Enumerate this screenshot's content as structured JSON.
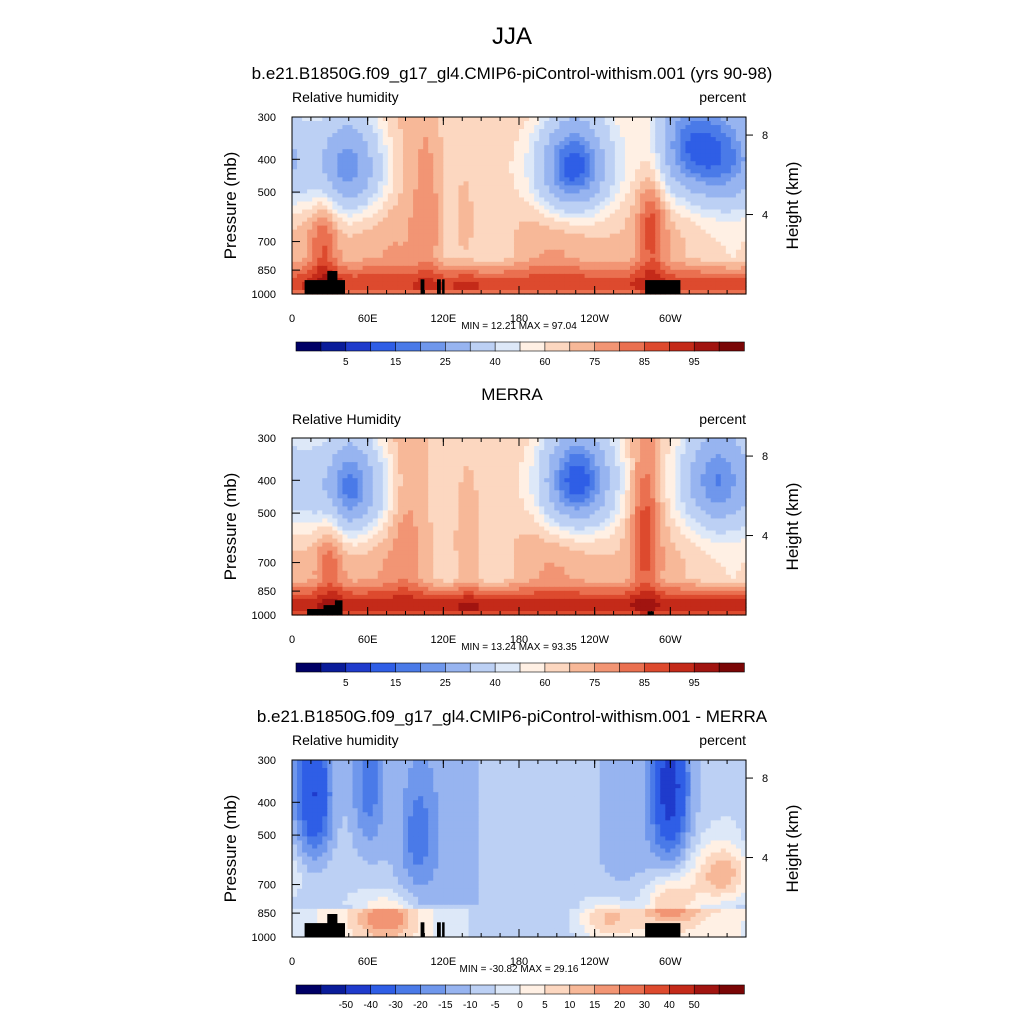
{
  "figure_title": "JJA",
  "colors": {
    "abs_levels": [
      "#000066",
      "#0a1c9a",
      "#1f3bcc",
      "#2f5ee6",
      "#4a7ae8",
      "#6f97ec",
      "#97b4f0",
      "#bcd0f4",
      "#dde8f8",
      "#fff0e4",
      "#fcd7c0",
      "#f7b898",
      "#f29574",
      "#ea7050",
      "#dd4a2e",
      "#c42a19",
      "#a11410",
      "#7a0606"
    ],
    "diff_levels": [
      "#000066",
      "#0a1c9a",
      "#1f3bcc",
      "#2f5ee6",
      "#4a7ae8",
      "#6f97ec",
      "#97b4f0",
      "#bcd0f4",
      "#dde8f8",
      "#fff0e4",
      "#fcd7c0",
      "#f7b898",
      "#f29574",
      "#ea7050",
      "#dd4a2e",
      "#c42a19",
      "#a11410",
      "#7a0606"
    ],
    "topography": "#000000"
  },
  "chart_data": [
    {
      "type": "heatmap",
      "title": "b.e21.B1850G.f09_g17_gl4.CMIP6-piControl-withism.001 (yrs 90-98)",
      "left_label": "Relative humidity",
      "right_label": "percent",
      "ylabel": "Pressure (mb)",
      "y2label": "Height (km)",
      "x_ticks": [
        "0",
        "60E",
        "120E",
        "180",
        "120W",
        "60W"
      ],
      "x_tick_lon": [
        0,
        60,
        120,
        180,
        240,
        300
      ],
      "xlim": [
        0,
        360
      ],
      "y_ticks": [
        "300",
        "400",
        "500",
        "700",
        "850",
        "1000"
      ],
      "y_tick_values": [
        300,
        400,
        500,
        700,
        850,
        1000
      ],
      "ylim": [
        1000,
        300
      ],
      "y2_ticks": [
        "8",
        "4"
      ],
      "y2_tick_km": [
        8,
        4
      ],
      "stats": "MIN =  12.21  MAX =  97.04",
      "min": 12.21,
      "max": 97.04,
      "colorbar_labels": [
        "5",
        "15",
        "25",
        "40",
        "60",
        "75",
        "85",
        "95"
      ],
      "colorbar_label_positions": [
        1,
        3,
        5,
        7,
        9,
        11,
        13,
        15
      ],
      "colorbar_bins": 17,
      "features": {
        "low_level_humid": 84,
        "mid_level_base": 66,
        "dry_cores": [
          {
            "lon": 45,
            "p": 420,
            "value": 25
          },
          {
            "lon": 222,
            "p": 420,
            "value": 13
          },
          {
            "lon": 310,
            "p": 360,
            "value": 30
          },
          {
            "lon": 345,
            "p": 400,
            "value": 38
          }
        ],
        "moist_columns": [
          {
            "lon": 108,
            "p": 600,
            "value": 76
          },
          {
            "lon": 138,
            "p": 600,
            "value": 74
          },
          {
            "lon": 285,
            "p": 620,
            "value": 84
          },
          {
            "lon": 25,
            "p": 720,
            "value": 82
          }
        ]
      },
      "topography": [
        {
          "lon0": 10,
          "lon1": 42,
          "p": 910
        },
        {
          "lon0": 28,
          "lon1": 36,
          "p": 855
        },
        {
          "lon0": 102,
          "lon1": 105,
          "p": 905
        },
        {
          "lon0": 115,
          "lon1": 118,
          "p": 905
        },
        {
          "lon0": 119,
          "lon1": 121,
          "p": 905
        },
        {
          "lon0": 280,
          "lon1": 308,
          "p": 910
        }
      ]
    },
    {
      "type": "heatmap",
      "title": "MERRA",
      "left_label": "Relative Humidity",
      "right_label": "percent",
      "ylabel": "Pressure (mb)",
      "y2label": "Height (km)",
      "x_ticks": [
        "0",
        "60E",
        "120E",
        "180",
        "120W",
        "60W"
      ],
      "x_tick_lon": [
        0,
        60,
        120,
        180,
        240,
        300
      ],
      "xlim": [
        0,
        360
      ],
      "y_ticks": [
        "300",
        "400",
        "500",
        "700",
        "850",
        "1000"
      ],
      "y_tick_values": [
        300,
        400,
        500,
        700,
        850,
        1000
      ],
      "ylim": [
        1000,
        300
      ],
      "y2_ticks": [
        "8",
        "4"
      ],
      "y2_tick_km": [
        8,
        4
      ],
      "stats": "MIN =  13.24  MAX =  93.35",
      "min": 13.24,
      "max": 93.35,
      "colorbar_labels": [
        "5",
        "15",
        "25",
        "40",
        "60",
        "75",
        "85",
        "95"
      ],
      "colorbar_label_positions": [
        1,
        3,
        5,
        7,
        9,
        11,
        13,
        15
      ],
      "colorbar_bins": 17,
      "features": {
        "low_level_humid": 88,
        "mid_level_base": 66,
        "dry_cores": [
          {
            "lon": 45,
            "p": 420,
            "value": 20
          },
          {
            "lon": 225,
            "p": 400,
            "value": 13
          },
          {
            "lon": 335,
            "p": 400,
            "value": 30
          }
        ],
        "moist_columns": [
          {
            "lon": 30,
            "p": 620,
            "value": 80
          },
          {
            "lon": 140,
            "p": 600,
            "value": 78
          },
          {
            "lon": 280,
            "p": 580,
            "value": 86
          },
          {
            "lon": 90,
            "p": 620,
            "value": 72
          }
        ]
      },
      "topography": [
        {
          "lon0": 12,
          "lon1": 40,
          "p": 960
        },
        {
          "lon0": 25,
          "lon1": 38,
          "p": 935
        },
        {
          "lon0": 34,
          "lon1": 40,
          "p": 905
        },
        {
          "lon0": 282,
          "lon1": 287,
          "p": 975
        }
      ]
    },
    {
      "type": "heatmap",
      "title": "b.e21.B1850G.f09_g17_gl4.CMIP6-piControl-withism.001 - MERRA",
      "left_label": "Relative humidity",
      "right_label": "percent",
      "ylabel": "Pressure (mb)",
      "y2label": "Height (km)",
      "x_ticks": [
        "0",
        "60E",
        "120E",
        "180",
        "120W",
        "60W"
      ],
      "x_tick_lon": [
        0,
        60,
        120,
        180,
        240,
        300
      ],
      "xlim": [
        0,
        360
      ],
      "y_ticks": [
        "300",
        "400",
        "500",
        "700",
        "850",
        "1000"
      ],
      "y_tick_values": [
        300,
        400,
        500,
        700,
        850,
        1000
      ],
      "ylim": [
        1000,
        300
      ],
      "y2_ticks": [
        "8",
        "4"
      ],
      "y2_tick_km": [
        8,
        4
      ],
      "stats": "MIN = -30.82  MAX =  29.16",
      "min": -30.82,
      "max": 29.16,
      "colorbar_labels": [
        "-50",
        "-40",
        "-30",
        "-20",
        "-15",
        "-10",
        "-5",
        "0",
        "5",
        "10",
        "15",
        "20",
        "30",
        "40",
        "50"
      ],
      "colorbar_label_positions": [
        1,
        2,
        3,
        4,
        5,
        6,
        7,
        8,
        9,
        10,
        11,
        12,
        13,
        14,
        15
      ],
      "colorbar_bins": 17,
      "features": {
        "background": -4,
        "dry_cores": [
          {
            "lon": 18,
            "p": 380,
            "value": -28
          },
          {
            "lon": 300,
            "p": 360,
            "value": -30
          },
          {
            "lon": 60,
            "p": 350,
            "value": -16
          },
          {
            "lon": 100,
            "p": 500,
            "value": -12
          }
        ],
        "moist_columns": [
          {
            "lon": 340,
            "p": 650,
            "value": 20
          },
          {
            "lon": 75,
            "p": 880,
            "value": 18
          },
          {
            "lon": 250,
            "p": 880,
            "value": 14
          },
          {
            "lon": 300,
            "p": 780,
            "value": 20
          }
        ]
      },
      "topography": [
        {
          "lon0": 10,
          "lon1": 42,
          "p": 910
        },
        {
          "lon0": 28,
          "lon1": 36,
          "p": 855
        },
        {
          "lon0": 102,
          "lon1": 105,
          "p": 905
        },
        {
          "lon0": 115,
          "lon1": 118,
          "p": 905
        },
        {
          "lon0": 119,
          "lon1": 121,
          "p": 905
        },
        {
          "lon0": 280,
          "lon1": 308,
          "p": 910
        }
      ]
    }
  ]
}
